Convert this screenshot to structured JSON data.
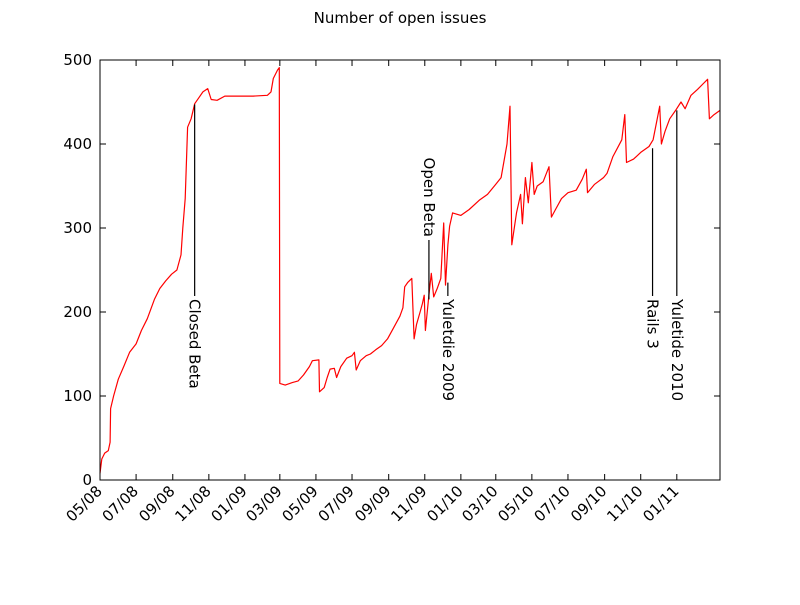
{
  "chart_data": {
    "type": "line",
    "title": "Number of open issues",
    "xlabel": "",
    "ylabel": "",
    "ylim": [
      0,
      500
    ],
    "xlim": [
      "2008-05-01",
      "2011-03-15"
    ],
    "grid": false,
    "x_tick_labels": [
      {
        "date": "2008-05-01",
        "label": "05/08"
      },
      {
        "date": "2008-07-01",
        "label": "07/08"
      },
      {
        "date": "2008-09-01",
        "label": "09/08"
      },
      {
        "date": "2008-11-01",
        "label": "11/08"
      },
      {
        "date": "2009-01-01",
        "label": "01/09"
      },
      {
        "date": "2009-03-01",
        "label": "03/09"
      },
      {
        "date": "2009-05-01",
        "label": "05/09"
      },
      {
        "date": "2009-07-01",
        "label": "07/09"
      },
      {
        "date": "2009-09-01",
        "label": "09/09"
      },
      {
        "date": "2009-11-01",
        "label": "11/09"
      },
      {
        "date": "2010-01-01",
        "label": "01/10"
      },
      {
        "date": "2010-03-01",
        "label": "03/10"
      },
      {
        "date": "2010-05-01",
        "label": "05/10"
      },
      {
        "date": "2010-07-01",
        "label": "07/10"
      },
      {
        "date": "2010-09-01",
        "label": "09/10"
      },
      {
        "date": "2010-11-01",
        "label": "11/10"
      },
      {
        "date": "2011-01-01",
        "label": "01/11"
      }
    ],
    "y_ticks": [
      0,
      100,
      200,
      300,
      400,
      500
    ],
    "series": [
      {
        "color": "#ff0000",
        "points": [
          [
            "2008-05-01",
            8
          ],
          [
            "2008-05-04",
            25
          ],
          [
            "2008-05-09",
            32
          ],
          [
            "2008-05-15",
            35
          ],
          [
            "2008-05-18",
            45
          ],
          [
            "2008-05-19",
            85
          ],
          [
            "2008-05-24",
            100
          ],
          [
            "2008-06-01",
            120
          ],
          [
            "2008-06-10",
            135
          ],
          [
            "2008-06-20",
            152
          ],
          [
            "2008-07-01",
            162
          ],
          [
            "2008-07-10",
            178
          ],
          [
            "2008-07-20",
            192
          ],
          [
            "2008-08-01",
            215
          ],
          [
            "2008-08-10",
            228
          ],
          [
            "2008-08-20",
            237
          ],
          [
            "2008-08-30",
            245
          ],
          [
            "2008-09-08",
            250
          ],
          [
            "2008-09-15",
            268
          ],
          [
            "2008-09-18",
            300
          ],
          [
            "2008-09-22",
            335
          ],
          [
            "2008-09-26",
            420
          ],
          [
            "2008-10-02",
            430
          ],
          [
            "2008-10-08",
            448
          ],
          [
            "2008-10-15",
            455
          ],
          [
            "2008-10-22",
            462
          ],
          [
            "2008-10-30",
            466
          ],
          [
            "2008-11-05",
            453
          ],
          [
            "2008-11-15",
            452
          ],
          [
            "2008-11-28",
            457
          ],
          [
            "2008-12-15",
            457
          ],
          [
            "2009-01-15",
            457
          ],
          [
            "2009-02-08",
            458
          ],
          [
            "2009-02-14",
            462
          ],
          [
            "2009-02-18",
            478
          ],
          [
            "2009-02-25",
            488
          ],
          [
            "2009-02-28",
            491
          ],
          [
            "2009-03-01",
            115
          ],
          [
            "2009-03-10",
            113
          ],
          [
            "2009-03-22",
            116
          ],
          [
            "2009-04-01",
            118
          ],
          [
            "2009-04-10",
            125
          ],
          [
            "2009-04-20",
            135
          ],
          [
            "2009-04-25",
            142
          ],
          [
            "2009-05-06",
            143
          ],
          [
            "2009-05-07",
            105
          ],
          [
            "2009-05-15",
            110
          ],
          [
            "2009-05-20",
            122
          ],
          [
            "2009-05-25",
            132
          ],
          [
            "2009-06-01",
            133
          ],
          [
            "2009-06-05",
            122
          ],
          [
            "2009-06-12",
            135
          ],
          [
            "2009-06-22",
            145
          ],
          [
            "2009-07-01",
            148
          ],
          [
            "2009-07-05",
            152
          ],
          [
            "2009-07-08",
            131
          ],
          [
            "2009-07-15",
            142
          ],
          [
            "2009-07-25",
            148
          ],
          [
            "2009-08-01",
            150
          ],
          [
            "2009-08-10",
            155
          ],
          [
            "2009-08-20",
            160
          ],
          [
            "2009-08-30",
            168
          ],
          [
            "2009-09-10",
            182
          ],
          [
            "2009-09-20",
            195
          ],
          [
            "2009-09-25",
            205
          ],
          [
            "2009-09-28",
            230
          ],
          [
            "2009-10-03",
            235
          ],
          [
            "2009-10-10",
            240
          ],
          [
            "2009-10-14",
            168
          ],
          [
            "2009-10-18",
            185
          ],
          [
            "2009-10-24",
            200
          ],
          [
            "2009-10-28",
            210
          ],
          [
            "2009-10-31",
            220
          ],
          [
            "2009-11-02",
            178
          ],
          [
            "2009-11-08",
            220
          ],
          [
            "2009-11-12",
            246
          ],
          [
            "2009-11-16",
            218
          ],
          [
            "2009-11-22",
            228
          ],
          [
            "2009-11-28",
            240
          ],
          [
            "2009-12-03",
            306
          ],
          [
            "2009-12-06",
            232
          ],
          [
            "2009-12-10",
            280
          ],
          [
            "2009-12-13",
            302
          ],
          [
            "2009-12-18",
            318
          ],
          [
            "2010-01-01",
            315
          ],
          [
            "2010-01-15",
            322
          ],
          [
            "2010-02-01",
            333
          ],
          [
            "2010-02-15",
            340
          ],
          [
            "2010-03-01",
            352
          ],
          [
            "2010-03-10",
            360
          ],
          [
            "2010-03-20",
            400
          ],
          [
            "2010-03-25",
            445
          ],
          [
            "2010-03-28",
            280
          ],
          [
            "2010-04-05",
            318
          ],
          [
            "2010-04-12",
            340
          ],
          [
            "2010-04-15",
            305
          ],
          [
            "2010-04-20",
            360
          ],
          [
            "2010-04-25",
            330
          ],
          [
            "2010-05-01",
            378
          ],
          [
            "2010-05-05",
            340
          ],
          [
            "2010-05-10",
            350
          ],
          [
            "2010-05-20",
            355
          ],
          [
            "2010-05-30",
            373
          ],
          [
            "2010-06-03",
            313
          ],
          [
            "2010-06-10",
            322
          ],
          [
            "2010-06-20",
            335
          ],
          [
            "2010-07-01",
            342
          ],
          [
            "2010-07-15",
            345
          ],
          [
            "2010-07-25",
            358
          ],
          [
            "2010-08-01",
            370
          ],
          [
            "2010-08-03",
            342
          ],
          [
            "2010-08-15",
            352
          ],
          [
            "2010-08-30",
            360
          ],
          [
            "2010-09-05",
            365
          ],
          [
            "2010-09-15",
            385
          ],
          [
            "2010-09-30",
            405
          ],
          [
            "2010-10-05",
            435
          ],
          [
            "2010-10-08",
            378
          ],
          [
            "2010-10-20",
            382
          ],
          [
            "2010-11-01",
            390
          ],
          [
            "2010-11-15",
            397
          ],
          [
            "2010-11-22",
            405
          ],
          [
            "2010-12-03",
            445
          ],
          [
            "2010-12-06",
            400
          ],
          [
            "2010-12-12",
            415
          ],
          [
            "2010-12-20",
            430
          ],
          [
            "2010-12-30",
            440
          ],
          [
            "2011-01-08",
            450
          ],
          [
            "2011-01-15",
            442
          ],
          [
            "2011-01-25",
            458
          ],
          [
            "2011-02-05",
            465
          ],
          [
            "2011-02-15",
            472
          ],
          [
            "2011-02-22",
            477
          ],
          [
            "2011-02-25",
            430
          ],
          [
            "2011-03-05",
            435
          ],
          [
            "2011-03-15",
            440
          ]
        ]
      }
    ],
    "annotations": [
      {
        "text": "Closed Beta",
        "date": "2008-10-08",
        "value": 447,
        "label_side": "below"
      },
      {
        "text": "Open Beta",
        "date": "2009-11-08",
        "value": 215,
        "label_side": "above"
      },
      {
        "text": "Yuletdie 2009",
        "date": "2009-12-10",
        "value": 235,
        "label_side": "below"
      },
      {
        "text": "Rails 3",
        "date": "2010-11-21",
        "value": 395,
        "label_side": "below"
      },
      {
        "text": "Yuletide 2010",
        "date": "2011-01-01",
        "value": 440,
        "label_side": "below"
      }
    ]
  }
}
